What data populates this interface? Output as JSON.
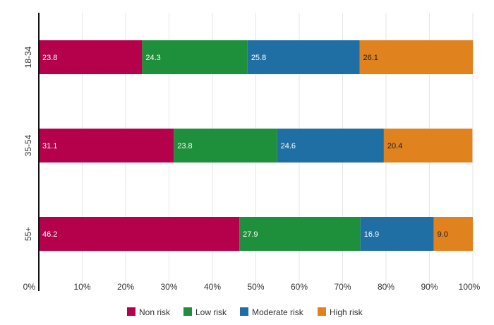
{
  "chart_data": {
    "type": "bar",
    "orientation": "horizontal",
    "stacked": true,
    "categories": [
      "18-34",
      "35-54",
      "55+"
    ],
    "series": [
      {
        "name": "Non risk",
        "color": "#b5004b",
        "values": [
          23.8,
          31.1,
          46.2
        ],
        "labels": [
          "23.8",
          "31.1",
          "46.2"
        ],
        "label_color": "#ffffff"
      },
      {
        "name": "Low risk",
        "color": "#1e8f3a",
        "values": [
          24.3,
          23.8,
          27.9
        ],
        "labels": [
          "24.3",
          "23.8",
          "27.9"
        ],
        "label_color": "#ffffff"
      },
      {
        "name": "Moderate risk",
        "color": "#1f6fa5",
        "values": [
          25.8,
          24.6,
          16.9
        ],
        "labels": [
          "25.8",
          "24.6",
          "16.9"
        ],
        "label_color": "#ffffff"
      },
      {
        "name": "High risk",
        "color": "#e0821e",
        "values": [
          26.1,
          20.4,
          9.0
        ],
        "labels": [
          "26.1",
          "20.4",
          "9.0"
        ],
        "label_color": "#222222"
      }
    ],
    "x_ticks": [
      "0%",
      "10%",
      "20%",
      "30%",
      "40%",
      "50%",
      "60%",
      "70%",
      "80%",
      "90%",
      "100%"
    ],
    "xlim": [
      0,
      100
    ],
    "grid": true,
    "legend": "bottom-center",
    "title": "",
    "xlabel": "",
    "ylabel": ""
  }
}
